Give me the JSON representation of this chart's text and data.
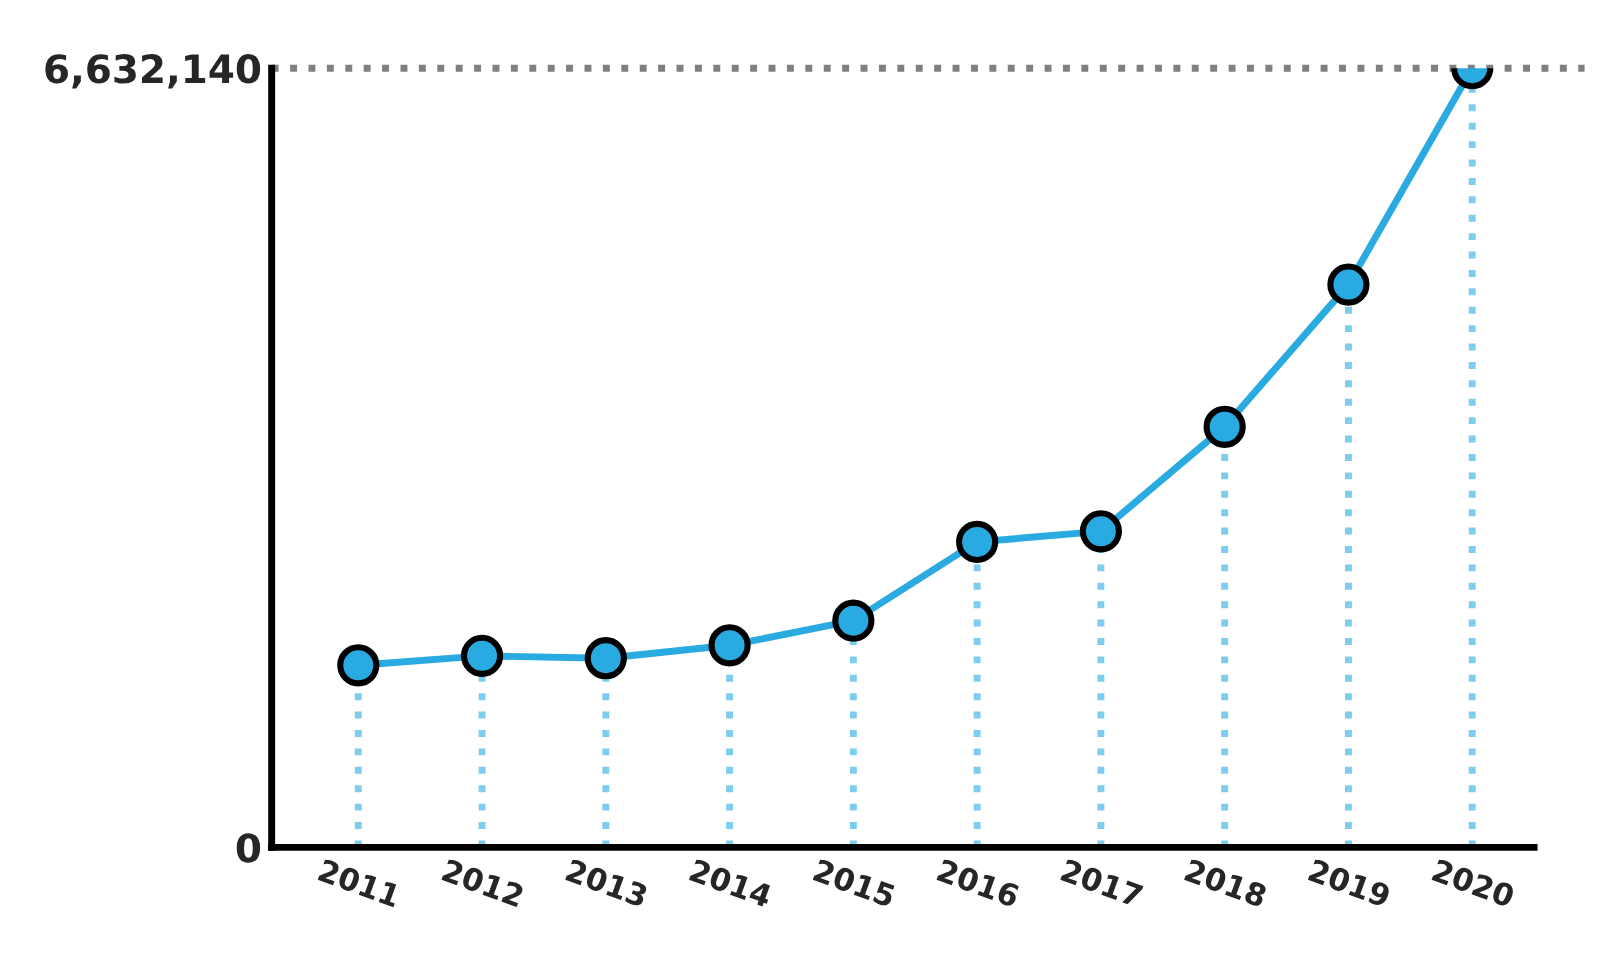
{
  "chart_data": {
    "type": "line",
    "categories": [
      "2011",
      "2012",
      "2013",
      "2014",
      "2015",
      "2016",
      "2017",
      "2018",
      "2019",
      "2020"
    ],
    "series": [
      {
        "color": "#29abe2",
        "values": [
          1550000,
          1630000,
          1610000,
          1720000,
          1930000,
          2600000,
          2690000,
          3580000,
          4790000,
          6632140
        ],
        "errors": [
          [
            0,
            1550000
          ],
          [
            0,
            1630000
          ],
          [
            0,
            1610000
          ],
          [
            0,
            1720000
          ],
          [
            0,
            1930000
          ],
          [
            0,
            2600000
          ],
          [
            0,
            2690000
          ],
          [
            0,
            3580000
          ],
          [
            0,
            4790000
          ],
          [
            0,
            6632140
          ]
        ]
      }
    ],
    "ylim": [
      0,
      6632140
    ],
    "yticks": [
      0,
      {
        "value": 6632140,
        "label": "6,632,140"
      }
    ],
    "ref_lines": [
      {
        "axis": "y",
        "value": 6632140,
        "color": "#808080",
        "line_style": "dotted"
      }
    ],
    "marker": "circle",
    "line_style": "solid",
    "grid": false,
    "legend": false
  }
}
